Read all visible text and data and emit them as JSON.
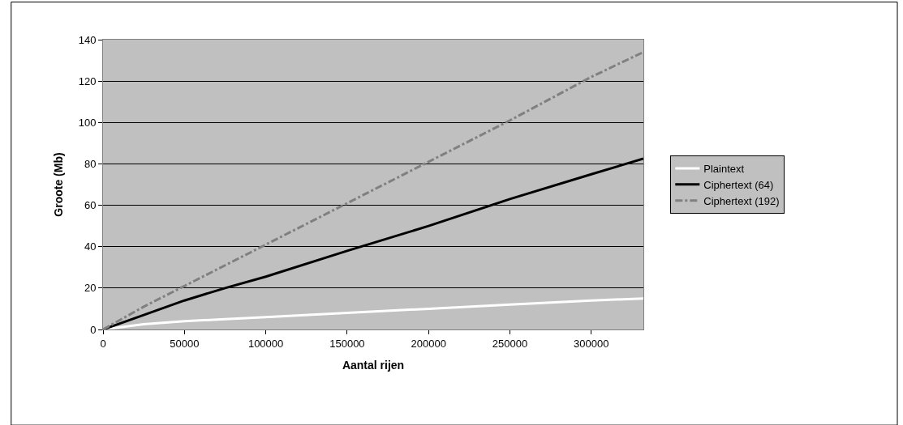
{
  "chart_data": {
    "type": "line",
    "xlabel": "Aantal rijen",
    "ylabel": "Groote (Mb)",
    "xlim": [
      0,
      332000
    ],
    "xticks": [
      0,
      50000,
      100000,
      150000,
      200000,
      250000,
      300000
    ],
    "ylim": [
      0,
      140
    ],
    "yticks": [
      0,
      20,
      40,
      60,
      80,
      100,
      120,
      140
    ],
    "grid": "y",
    "legend": "right",
    "marker": "none",
    "series": [
      {
        "name": "Plaintext",
        "color": "#ffffff",
        "line_style": "solid",
        "x": [
          0,
          25000,
          50000,
          75000,
          100000,
          150000,
          200000,
          250000,
          300000,
          332000
        ],
        "values": [
          0,
          2.5,
          4,
          5,
          6,
          8,
          10,
          12,
          14,
          15
        ]
      },
      {
        "name": "Ciphertext (64)",
        "color": "#000000",
        "line_style": "solid",
        "x": [
          0,
          25000,
          50000,
          75000,
          100000,
          150000,
          200000,
          250000,
          300000,
          332000
        ],
        "values": [
          0,
          7,
          14,
          20,
          25.5,
          38,
          50,
          63,
          75,
          82.5
        ]
      },
      {
        "name": "Ciphertext (192)",
        "color": "#808080",
        "line_style": "dashdot",
        "x": [
          0,
          25000,
          50000,
          75000,
          100000,
          150000,
          200000,
          250000,
          300000,
          332000
        ],
        "values": [
          0,
          11,
          21,
          31,
          41,
          61,
          81,
          101,
          122,
          134
        ]
      }
    ]
  }
}
